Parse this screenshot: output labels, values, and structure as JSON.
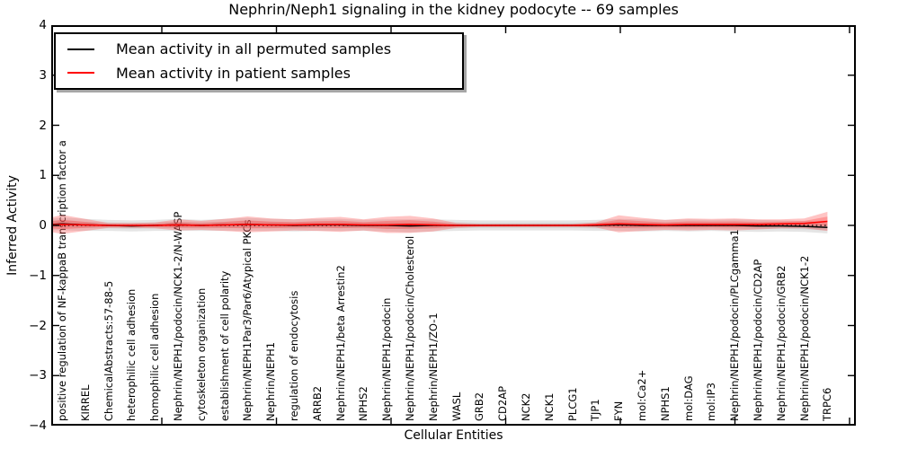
{
  "chart_data": {
    "type": "line",
    "title": "Nephrin/Neph1 signaling in the kidney podocyte -- 69 samples",
    "xlabel": "Cellular Entities",
    "ylabel": "Inferred Activity",
    "ylim": [
      -4,
      4
    ],
    "yticks": [
      4,
      3,
      2,
      1,
      0,
      -1,
      -2,
      -3,
      -4
    ],
    "grid": false,
    "legend_position": "upper left",
    "zero_reference_line": {
      "value": 0,
      "style": "dotted",
      "color": "#000000"
    },
    "categories": [
      "positive regulation of NF-kappaB transcription factor a",
      "KIRREL",
      "ChemicalAbstracts:57-88-5",
      "heterophilic cell adhesion",
      "homophilic cell adhesion",
      "Nephrin/NEPH1/podocin/NCK1-2/N-WASP",
      "cytoskeleton organization",
      "establishment of cell polarity",
      "Nephrin/NEPH1Par3/Par6/Atypical PKCs",
      "Nephrin/NEPH1",
      "regulation of endocytosis",
      "ARRB2",
      "Nephrin/NEPH1/beta Arrestin2",
      "NPHS2",
      "Nephrin/NEPH1/podocin",
      "Nephrin/NEPH1/podocin/Cholesterol",
      "Nephrin/NEPH1/ZO-1",
      "WASL",
      "GRB2",
      "CD2AP",
      "NCK2",
      "NCK1",
      "PLCG1",
      "TJP1",
      "FYN",
      "mol:Ca2+",
      "NPHS1",
      "mol:DAG",
      "mol:IP3",
      "Nephrin/NEPH1/podocin/PLCgamma1",
      "Nephrin/NEPH1/podocin/CD2AP",
      "Nephrin/NEPH1/podocin/GRB2",
      "Nephrin/NEPH1/podocin/NCK1-2",
      "TRPC6"
    ],
    "series": [
      {
        "name": "Mean activity in all permuted samples",
        "color": "#000000",
        "style": "solid",
        "show_in_legend": true,
        "values": [
          0.03,
          0.01,
          0.0,
          -0.01,
          0.0,
          0.01,
          0.0,
          0.01,
          0.02,
          0.01,
          0.0,
          0.01,
          0.01,
          0.0,
          0.0,
          -0.01,
          0.0,
          0.0,
          0.0,
          0.0,
          0.0,
          0.0,
          0.0,
          0.0,
          0.01,
          0.0,
          0.0,
          0.0,
          0.0,
          0.0,
          -0.01,
          -0.01,
          -0.02,
          -0.04
        ]
      },
      {
        "name": "Mean activity in patient samples",
        "color": "#ff0000",
        "style": "solid",
        "show_in_legend": true,
        "values": [
          0.02,
          0.01,
          0.0,
          0.0,
          0.0,
          0.01,
          0.0,
          0.01,
          0.02,
          0.01,
          0.01,
          0.02,
          0.02,
          0.01,
          0.01,
          0.02,
          0.01,
          0.0,
          0.0,
          0.0,
          0.0,
          0.0,
          0.0,
          0.01,
          0.03,
          0.02,
          0.01,
          0.02,
          0.02,
          0.02,
          0.02,
          0.03,
          0.04,
          0.08
        ]
      }
    ],
    "bands": [
      {
        "name": "permuted samples spread",
        "color": "#999999",
        "around_series": 0,
        "half_heights": [
          0.13,
          0.12,
          0.11,
          0.11,
          0.11,
          0.12,
          0.11,
          0.12,
          0.13,
          0.12,
          0.12,
          0.12,
          0.12,
          0.11,
          0.12,
          0.13,
          0.12,
          0.11,
          0.1,
          0.1,
          0.1,
          0.1,
          0.1,
          0.11,
          0.12,
          0.12,
          0.11,
          0.12,
          0.11,
          0.12,
          0.12,
          0.11,
          0.11,
          0.12
        ]
      },
      {
        "name": "patient samples spread",
        "color": "#ff3c3c",
        "around_series": 1,
        "half_heights": [
          0.19,
          0.12,
          0.05,
          0.05,
          0.06,
          0.11,
          0.09,
          0.12,
          0.16,
          0.13,
          0.11,
          0.13,
          0.15,
          0.11,
          0.16,
          0.17,
          0.13,
          0.05,
          0.03,
          0.03,
          0.03,
          0.03,
          0.03,
          0.05,
          0.17,
          0.13,
          0.1,
          0.12,
          0.11,
          0.12,
          0.1,
          0.09,
          0.1,
          0.19
        ]
      }
    ]
  }
}
